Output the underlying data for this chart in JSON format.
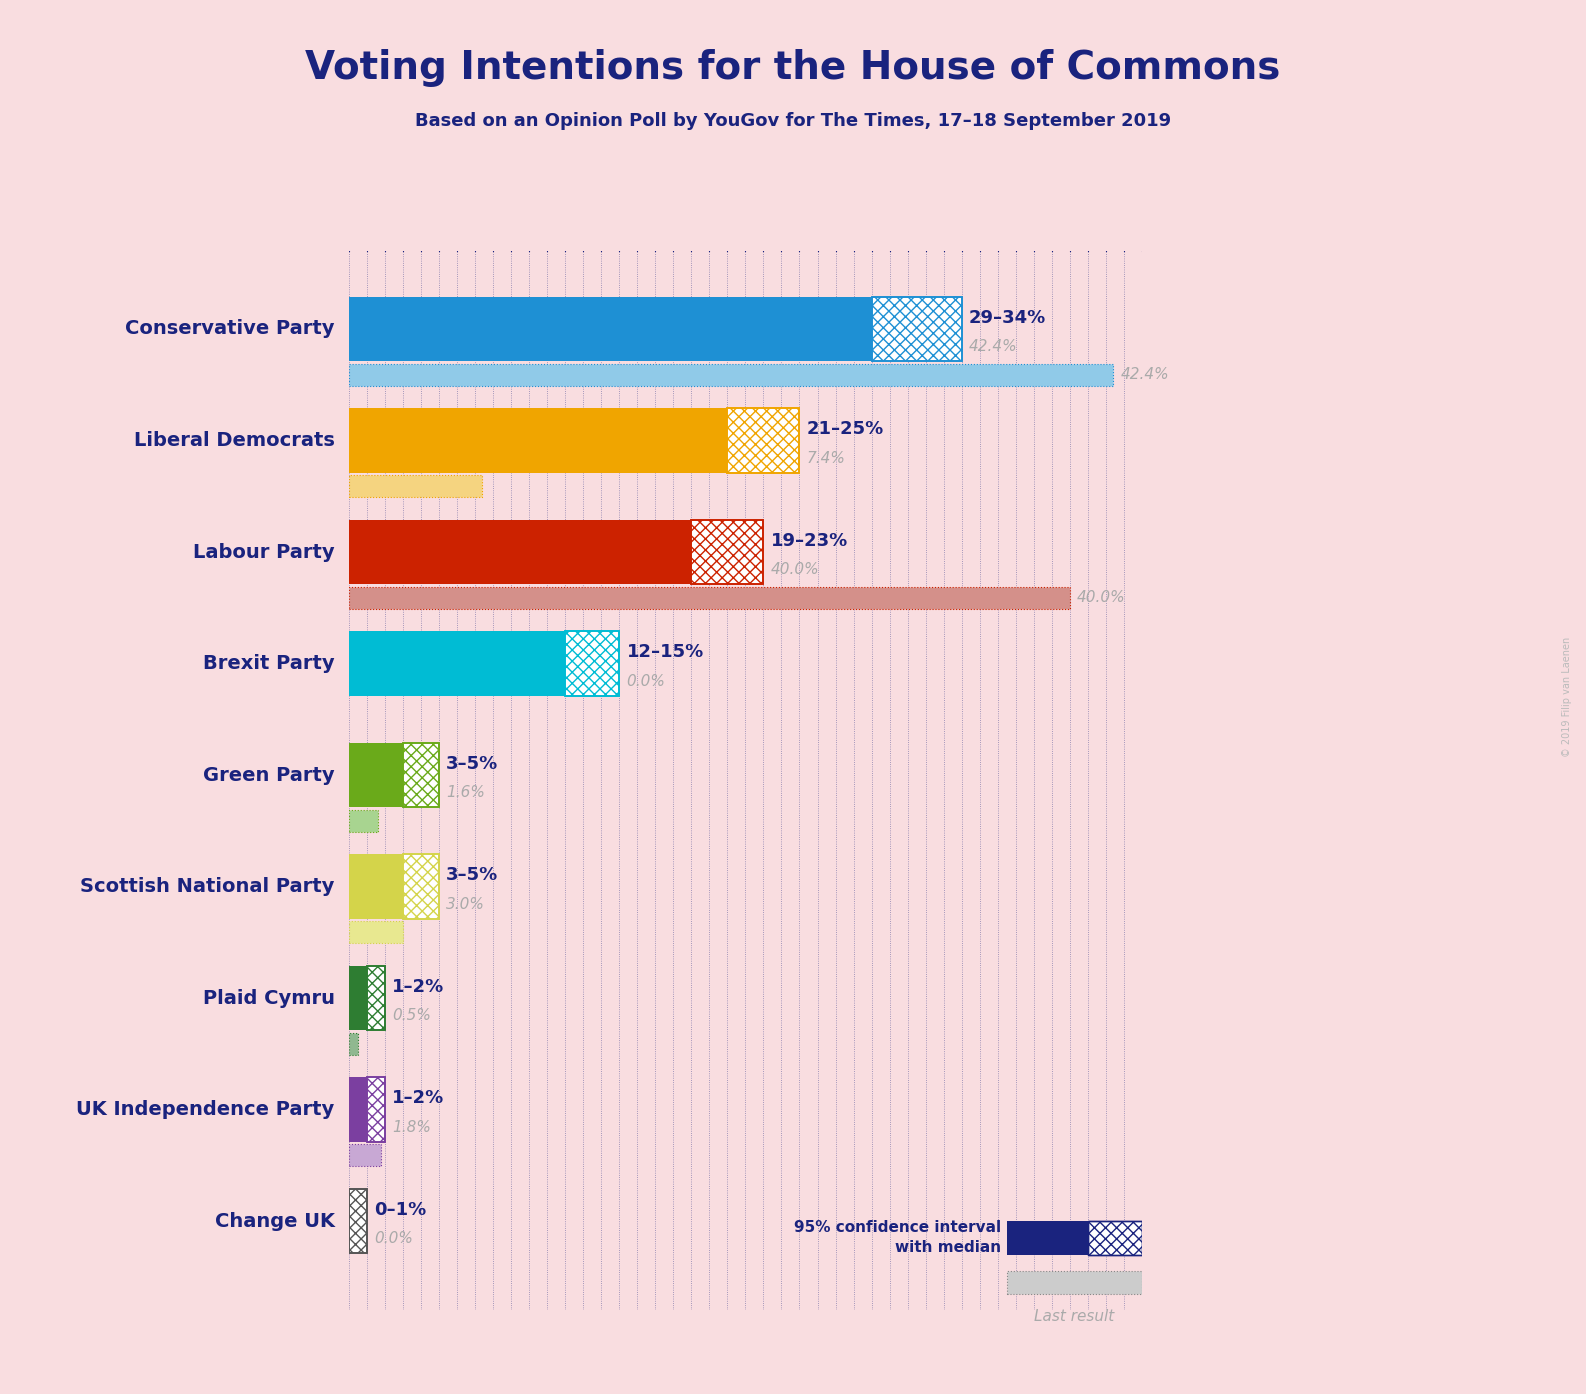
{
  "title": "Voting Intentions for the House of Commons",
  "subtitle": "Based on an Opinion Poll by YouGov for The Times, 17–18 September 2019",
  "copyright": "© 2019 Filip van Laenen",
  "background_color": "#f9dde0",
  "title_color": "#1a237e",
  "subtitle_color": "#1a237e",
  "parties": [
    "Conservative Party",
    "Liberal Democrats",
    "Labour Party",
    "Brexit Party",
    "Green Party",
    "Scottish National Party",
    "Plaid Cymru",
    "UK Independence Party",
    "Change UK"
  ],
  "bar_low": [
    29,
    21,
    19,
    12,
    3,
    3,
    1,
    1,
    0
  ],
  "bar_high": [
    34,
    25,
    23,
    15,
    5,
    5,
    2,
    2,
    1
  ],
  "last_result": [
    42.4,
    7.4,
    40.0,
    0.0,
    1.6,
    3.0,
    0.5,
    1.8,
    0.0
  ],
  "range_labels": [
    "29–34%",
    "21–25%",
    "19–23%",
    "12–15%",
    "3–5%",
    "3–5%",
    "1–2%",
    "1–2%",
    "0–1%"
  ],
  "last_result_labels": [
    "42.4%",
    "7.4%",
    "40.0%",
    "0.0%",
    "1.6%",
    "3.0%",
    "0.5%",
    "1.8%",
    "0.0%"
  ],
  "bar_colors": [
    "#1e90d4",
    "#f0a500",
    "#cc2200",
    "#00bcd4",
    "#6aaa1a",
    "#d4d44a",
    "#2e7d32",
    "#7b3fa0",
    "#555555"
  ],
  "last_result_colors": [
    "#90cae8",
    "#f5d480",
    "#d4908a",
    "#90dce8",
    "#a8d490",
    "#e8e890",
    "#90b890",
    "#c8a8d4",
    "#aaaaaa"
  ],
  "label_color": "#1a237e",
  "last_result_text_color": "#aaaaaa",
  "legend_dark_color": "#1a237e",
  "xmax": 44
}
